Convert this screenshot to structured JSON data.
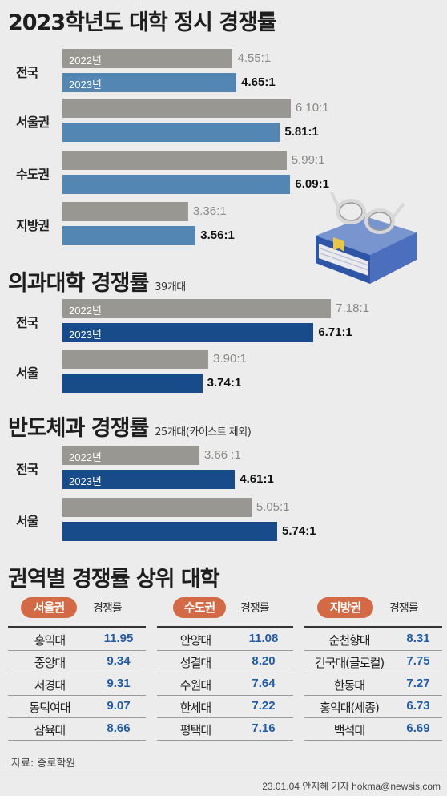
{
  "sections": {
    "overall": {
      "title": "2023학년도 대학 정시 경쟁률",
      "subtitle": "",
      "color": "#5486b4",
      "groups": [
        {
          "label": "전국",
          "old": 4.55,
          "new": 4.65,
          "old_text": "4.55:1",
          "new_text": "4.65:1"
        },
        {
          "label": "서울권",
          "old": 6.1,
          "new": 5.81,
          "old_text": "6.10:1",
          "new_text": "5.81:1"
        },
        {
          "label": "수도권",
          "old": 5.99,
          "new": 6.09,
          "old_text": "5.99:1",
          "new_text": "6.09:1"
        },
        {
          "label": "지방권",
          "old": 3.36,
          "new": 3.56,
          "old_text": "3.36:1",
          "new_text": "3.56:1"
        }
      ]
    },
    "medical": {
      "title": "의과대학 경쟁률",
      "subtitle": "39개대",
      "color": "#174b8a",
      "groups": [
        {
          "label": "전국",
          "old": 7.18,
          "new": 6.71,
          "old_text": "7.18:1",
          "new_text": "6.71:1"
        },
        {
          "label": "서울",
          "old": 3.9,
          "new": 3.74,
          "old_text": "3.90:1",
          "new_text": "3.74:1"
        }
      ]
    },
    "semiconductor": {
      "title": "반도체과 경쟁률",
      "subtitle": "25개대(카이스트 제외)",
      "color": "#174b8a",
      "groups": [
        {
          "label": "전국",
          "old": 3.66,
          "new": 4.61,
          "old_text": "3.66 :1",
          "new_text": "4.61:1"
        },
        {
          "label": "서울",
          "old": 5.05,
          "new": 5.74,
          "old_text": "5.05:1",
          "new_text": "5.74:1"
        }
      ]
    }
  },
  "chart_data": [
    {
      "type": "bar",
      "title": "2023학년도 대학 정시 경쟁률",
      "categories": [
        "전국",
        "서울권",
        "수도권",
        "지방권"
      ],
      "series": [
        {
          "name": "2022년",
          "values": [
            4.55,
            6.1,
            5.99,
            3.36
          ]
        },
        {
          "name": "2023년",
          "values": [
            4.65,
            5.81,
            6.09,
            3.56
          ]
        }
      ]
    },
    {
      "type": "bar",
      "title": "의과대학 경쟁률",
      "categories": [
        "전국",
        "서울"
      ],
      "series": [
        {
          "name": "2022년",
          "values": [
            7.18,
            3.9
          ]
        },
        {
          "name": "2023년",
          "values": [
            6.71,
            3.74
          ]
        }
      ]
    },
    {
      "type": "bar",
      "title": "반도체과 경쟁률",
      "categories": [
        "전국",
        "서울"
      ],
      "series": [
        {
          "name": "2022년",
          "values": [
            3.66,
            5.05
          ]
        },
        {
          "name": "2023년",
          "values": [
            4.61,
            5.74
          ]
        }
      ]
    }
  ],
  "year_labels": {
    "old": "2022년",
    "new": "2023년"
  },
  "colors": {
    "old": "#999792",
    "pill": "#d36a45",
    "rate": "#1f5ca6"
  },
  "ranking": {
    "title": "권역별 경쟁률 상위 대학",
    "col_header": "경쟁률",
    "regions": [
      {
        "name": "서울권",
        "rows": [
          [
            "홍익대",
            "11.95"
          ],
          [
            "중앙대",
            "9.34"
          ],
          [
            "서경대",
            "9.31"
          ],
          [
            "동덕여대",
            "9.07"
          ],
          [
            "삼육대",
            "8.66"
          ]
        ]
      },
      {
        "name": "수도권",
        "rows": [
          [
            "안양대",
            "11.08"
          ],
          [
            "성결대",
            "8.20"
          ],
          [
            "수원대",
            "7.64"
          ],
          [
            "한세대",
            "7.22"
          ],
          [
            "평택대",
            "7.16"
          ]
        ]
      },
      {
        "name": "지방권",
        "rows": [
          [
            "순천향대",
            "8.31"
          ],
          [
            "건국대(글로컬)",
            "7.75"
          ],
          [
            "한동대",
            "7.27"
          ],
          [
            "홍익대(세종)",
            "6.73"
          ],
          [
            "백석대",
            "6.69"
          ]
        ]
      }
    ]
  },
  "source": "자료: 종로학원",
  "credit": "23.01.04 안지혜 기자 hokma@newsis.com",
  "illustration": "book-with-glasses-icon"
}
